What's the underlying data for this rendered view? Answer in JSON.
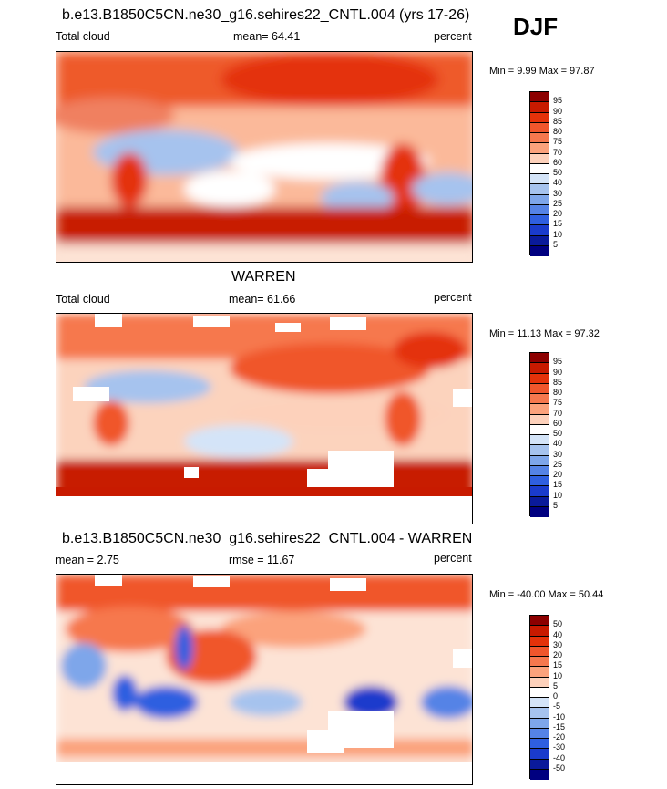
{
  "season": "DJF",
  "chart_data": [
    {
      "type": "heatmap",
      "title": "b.e13.B1850C5CN.ne30_g16.sehires22_CNTL.004 (yrs 17-26)",
      "left_label": "Total cloud",
      "center_label": "mean=  64.41",
      "right_label": "percent",
      "minmax": "Min =   9.99 Max =  97.87",
      "colorbar_levels": [
        "95",
        "90",
        "85",
        "80",
        "75",
        "70",
        "60",
        "50",
        "40",
        "30",
        "25",
        "20",
        "15",
        "10",
        "5"
      ],
      "colorbar_colors": [
        "#8c0000",
        "#c81a00",
        "#e4320a",
        "#f0562c",
        "#f6784e",
        "#fba27c",
        "#fdd1bb",
        "#ffffff",
        "#d4e4f8",
        "#a6c3ee",
        "#7ea6ea",
        "#5583e6",
        "#2f5fe0",
        "#1a3bcc",
        "#0a1a9a",
        "#000080"
      ],
      "min": 9.99,
      "max": 97.87,
      "mean": 64.41
    },
    {
      "type": "heatmap",
      "title": "WARREN",
      "left_label": "Total cloud",
      "center_label": "mean=  61.66",
      "right_label": "percent",
      "minmax": "Min =  11.13 Max =  97.32",
      "colorbar_levels": [
        "95",
        "90",
        "85",
        "80",
        "75",
        "70",
        "60",
        "50",
        "40",
        "30",
        "25",
        "20",
        "15",
        "10",
        "5"
      ],
      "colorbar_colors": [
        "#8c0000",
        "#c81a00",
        "#e4320a",
        "#f0562c",
        "#f6784e",
        "#fba27c",
        "#fdd1bb",
        "#ffffff",
        "#d4e4f8",
        "#a6c3ee",
        "#7ea6ea",
        "#5583e6",
        "#2f5fe0",
        "#1a3bcc",
        "#0a1a9a",
        "#000080"
      ],
      "min": 11.13,
      "max": 97.32,
      "mean": 61.66
    },
    {
      "type": "heatmap",
      "title": "b.e13.B1850C5CN.ne30_g16.sehires22_CNTL.004 - WARREN",
      "left_label": "mean =   2.75",
      "center_label": "rmse =  11.67",
      "right_label": "percent",
      "minmax": "Min = -40.00 Max =  50.44",
      "colorbar_levels": [
        "50",
        "40",
        "30",
        "20",
        "15",
        "10",
        "5",
        "0",
        "-5",
        "-10",
        "-15",
        "-20",
        "-30",
        "-40",
        "-50"
      ],
      "colorbar_colors": [
        "#8c0000",
        "#c81a00",
        "#e4320a",
        "#f0562c",
        "#f6784e",
        "#fba27c",
        "#fdd1bb",
        "#ffffff",
        "#d4e4f8",
        "#a6c3ee",
        "#7ea6ea",
        "#5583e6",
        "#2f5fe0",
        "#1a3bcc",
        "#0a1a9a",
        "#000080"
      ],
      "min": -40.0,
      "max": 50.44,
      "mean": 2.75,
      "rmse": 11.67
    }
  ]
}
